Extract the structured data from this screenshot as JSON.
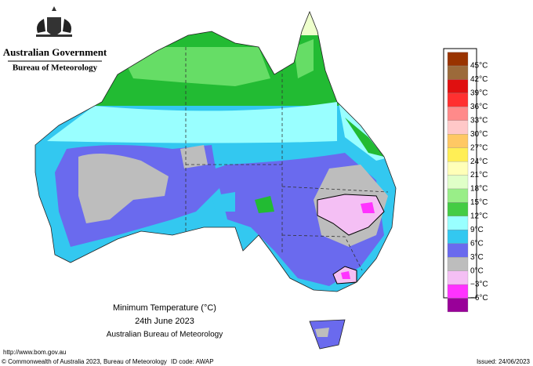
{
  "header": {
    "government": "Australian Government",
    "agency": "Bureau of Meteorology"
  },
  "legend": {
    "labels": [
      "45°C",
      "42°C",
      "39°C",
      "36°C",
      "33°C",
      "30°C",
      "27°C",
      "24°C",
      "21°C",
      "18°C",
      "15°C",
      "12°C",
      "9°C",
      "6°C",
      "3°C",
      "0°C",
      "−3°C",
      "−6°C"
    ],
    "colors": [
      "#993300",
      "#9c6a3a",
      "#e01010",
      "#ff3030",
      "#ff8a8a",
      "#ffc8c8",
      "#ffc864",
      "#ffee55",
      "#ffffb8",
      "#e0ffc8",
      "#99ee88",
      "#44cc44",
      "#99ffff",
      "#33c8f0",
      "#6a6aee",
      "#bdbdbd",
      "#f4bff4",
      "#ff33ff",
      "#990099"
    ]
  },
  "title": {
    "line1": "Minimum Temperature (°C)",
    "line2": "24th June 2023",
    "line3": "Australian Bureau of Meteorology"
  },
  "footer": {
    "url": "http://www.bom.gov.au",
    "copyright": "© Commonwealth of Australia 2023, Bureau of Meteorology",
    "id_code": "ID code: AWAP",
    "issued": "Issued: 24/06/2023"
  }
}
